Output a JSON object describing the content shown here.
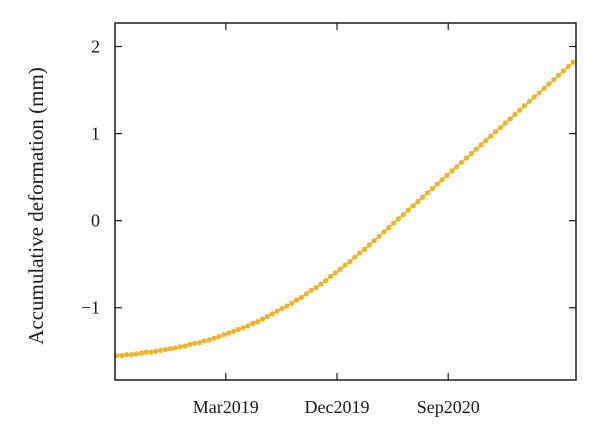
{
  "chart_data": {
    "type": "line",
    "title": "",
    "xlabel": "",
    "ylabel": "Accumulative deformation (mm)",
    "x_ticks": [
      "Mar2019",
      "Dec2019",
      "Sep2020"
    ],
    "y_ticks": [
      "-1",
      "0",
      "1",
      "2"
    ],
    "ylim": [
      -1.83,
      2.27
    ],
    "grid": false,
    "series": [
      {
        "color": "#f0b429",
        "marker": "circle",
        "x": [
          "2018-06-05",
          "2018-06-17",
          "2018-06-29",
          "2018-07-11",
          "2018-07-23",
          "2018-08-04",
          "2018-08-16",
          "2018-08-28",
          "2018-09-09",
          "2018-09-21",
          "2018-10-03",
          "2018-10-15",
          "2018-10-27",
          "2018-11-08",
          "2018-11-20",
          "2018-12-02",
          "2018-12-14",
          "2018-12-26",
          "2019-01-07",
          "2019-01-19",
          "2019-01-31",
          "2019-02-12",
          "2019-02-24",
          "2019-03-08",
          "2019-03-20",
          "2019-04-01",
          "2019-04-13",
          "2019-04-25",
          "2019-05-07",
          "2019-05-19",
          "2019-05-31",
          "2019-06-12",
          "2019-06-24",
          "2019-07-06",
          "2019-07-18",
          "2019-07-30",
          "2019-08-11",
          "2019-08-23",
          "2019-09-04",
          "2019-09-16",
          "2019-09-28",
          "2019-10-10",
          "2019-10-22",
          "2019-11-03",
          "2019-11-15",
          "2019-11-27",
          "2019-12-09",
          "2019-12-21",
          "2020-01-02",
          "2020-01-14",
          "2020-01-26",
          "2020-02-07",
          "2020-02-19",
          "2020-03-02",
          "2020-03-14",
          "2020-03-26",
          "2020-04-07",
          "2020-04-19",
          "2020-05-01",
          "2020-05-13",
          "2020-05-25",
          "2020-06-06",
          "2020-06-18",
          "2020-06-30",
          "2020-07-12",
          "2020-07-24",
          "2020-08-05",
          "2020-08-17",
          "2020-08-29",
          "2020-09-10",
          "2020-09-22",
          "2020-10-04",
          "2020-10-16",
          "2020-10-28",
          "2020-11-09",
          "2020-11-21",
          "2020-12-03",
          "2020-12-15",
          "2020-12-27",
          "2021-01-08",
          "2021-01-20",
          "2021-02-01",
          "2021-02-13",
          "2021-02-25",
          "2021-03-09",
          "2021-03-21",
          "2021-04-02",
          "2021-04-14",
          "2021-04-26",
          "2021-05-08",
          "2021-05-20",
          "2021-06-01",
          "2021-06-13",
          "2021-06-25",
          "2021-07-07"
        ],
        "y": [
          -1.55,
          -1.55,
          -1.54,
          -1.54,
          -1.53,
          -1.52,
          -1.51,
          -1.51,
          -1.5,
          -1.49,
          -1.48,
          -1.47,
          -1.46,
          -1.45,
          -1.44,
          -1.42,
          -1.41,
          -1.4,
          -1.38,
          -1.37,
          -1.35,
          -1.33,
          -1.31,
          -1.29,
          -1.27,
          -1.25,
          -1.23,
          -1.21,
          -1.18,
          -1.16,
          -1.13,
          -1.1,
          -1.07,
          -1.04,
          -1.01,
          -0.98,
          -0.95,
          -0.91,
          -0.88,
          -0.84,
          -0.8,
          -0.77,
          -0.73,
          -0.69,
          -0.64,
          -0.6,
          -0.56,
          -0.51,
          -0.47,
          -0.42,
          -0.37,
          -0.33,
          -0.28,
          -0.23,
          -0.18,
          -0.13,
          -0.08,
          -0.03,
          0.02,
          0.07,
          0.12,
          0.17,
          0.22,
          0.27,
          0.32,
          0.37,
          0.42,
          0.47,
          0.52,
          0.57,
          0.62,
          0.67,
          0.72,
          0.77,
          0.82,
          0.87,
          0.92,
          0.97,
          1.02,
          1.07,
          1.12,
          1.17,
          1.22,
          1.27,
          1.32,
          1.37,
          1.42,
          1.47,
          1.52,
          1.57,
          1.62,
          1.67,
          1.72,
          1.77,
          1.82
        ]
      }
    ]
  }
}
